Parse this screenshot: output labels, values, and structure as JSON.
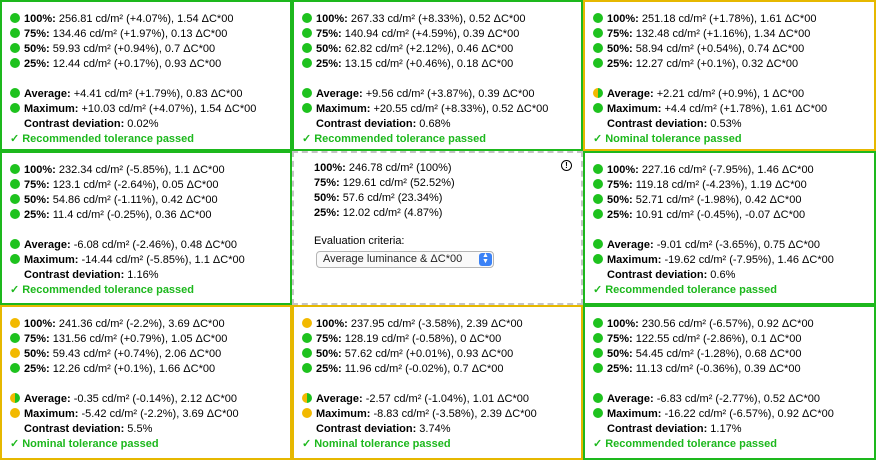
{
  "cells": [
    {
      "border": "green",
      "rows": [
        {
          "dot": "green",
          "label": "100%:",
          "text": " 256.81 cd/m² (+4.07%), 1.54 ΔC*00"
        },
        {
          "dot": "green",
          "label": "75%:",
          "text": " 134.46 cd/m² (+1.97%), 0.13 ΔC*00"
        },
        {
          "dot": "green",
          "label": "50%:",
          "text": " 59.93 cd/m² (+0.94%), 0.7 ΔC*00"
        },
        {
          "dot": "green",
          "label": "25%:",
          "text": " 12.44 cd/m² (+0.17%), 0.93 ΔC*00"
        }
      ],
      "average": {
        "dot": "green",
        "label": "Average:",
        "text": " +4.41 cd/m² (+1.79%), 0.83 ΔC*00"
      },
      "maximum": {
        "dot": "green",
        "label": "Maximum:",
        "text": " +10.03 cd/m² (+4.07%), 1.54 ΔC*00"
      },
      "contrast": {
        "label": "Contrast deviation:",
        "text": " 0.02%"
      },
      "status": "Recommended tolerance passed"
    },
    {
      "border": "green",
      "rows": [
        {
          "dot": "green",
          "label": "100%:",
          "text": " 267.33 cd/m² (+8.33%), 0.52 ΔC*00"
        },
        {
          "dot": "green",
          "label": "75%:",
          "text": " 140.94 cd/m² (+4.59%), 0.39 ΔC*00"
        },
        {
          "dot": "green",
          "label": "50%:",
          "text": " 62.82 cd/m² (+2.12%), 0.46 ΔC*00"
        },
        {
          "dot": "green",
          "label": "25%:",
          "text": " 13.15 cd/m² (+0.46%), 0.18 ΔC*00"
        }
      ],
      "average": {
        "dot": "green",
        "label": "Average:",
        "text": " +9.56 cd/m² (+3.87%), 0.39 ΔC*00"
      },
      "maximum": {
        "dot": "green",
        "label": "Maximum:",
        "text": " +20.55 cd/m² (+8.33%), 0.52 ΔC*00"
      },
      "contrast": {
        "label": "Contrast deviation:",
        "text": " 0.68%"
      },
      "status": "Recommended tolerance passed"
    },
    {
      "border": "yellow",
      "rows": [
        {
          "dot": "green",
          "label": "100%:",
          "text": " 251.18 cd/m² (+1.78%), 1.61 ΔC*00"
        },
        {
          "dot": "green",
          "label": "75%:",
          "text": " 132.48 cd/m² (+1.16%), 1.34 ΔC*00"
        },
        {
          "dot": "green",
          "label": "50%:",
          "text": " 58.94 cd/m² (+0.54%), 0.74 ΔC*00"
        },
        {
          "dot": "green",
          "label": "25%:",
          "text": " 12.27 cd/m² (+0.1%), 0.32 ΔC*00"
        }
      ],
      "average": {
        "dot": "half",
        "label": "Average:",
        "text": " +2.21 cd/m² (+0.9%), 1 ΔC*00"
      },
      "maximum": {
        "dot": "green",
        "label": "Maximum:",
        "text": " +4.4 cd/m² (+1.78%), 1.61 ΔC*00"
      },
      "contrast": {
        "label": "Contrast deviation:",
        "text": " 0.53%"
      },
      "status": "Nominal tolerance passed"
    },
    {
      "border": "green",
      "rows": [
        {
          "dot": "green",
          "label": "100%:",
          "text": " 232.34 cd/m² (-5.85%), 1.1 ΔC*00"
        },
        {
          "dot": "green",
          "label": "75%:",
          "text": " 123.1 cd/m² (-2.64%), 0.05 ΔC*00"
        },
        {
          "dot": "green",
          "label": "50%:",
          "text": " 54.86 cd/m² (-1.11%), 0.42 ΔC*00"
        },
        {
          "dot": "green",
          "label": "25%:",
          "text": " 11.4 cd/m² (-0.25%), 0.36 ΔC*00"
        }
      ],
      "average": {
        "dot": "green",
        "label": "Average:",
        "text": " -6.08 cd/m² (-2.46%), 0.48 ΔC*00"
      },
      "maximum": {
        "dot": "green",
        "label": "Maximum:",
        "text": " -14.44 cd/m² (-5.85%), 1.1 ΔC*00"
      },
      "contrast": {
        "label": "Contrast deviation:",
        "text": " 1.16%"
      },
      "status": "Recommended tolerance passed"
    },
    {
      "border": "center",
      "reference": [
        {
          "label": "100%:",
          "text": " 246.78 cd/m² (100%)"
        },
        {
          "label": "75%:",
          "text": " 129.61 cd/m² (52.52%)"
        },
        {
          "label": "50%:",
          "text": " 57.6 cd/m² (23.34%)"
        },
        {
          "label": "25%:",
          "text": " 12.02 cd/m² (4.87%)"
        }
      ],
      "criteria_label": "Evaluation criteria:",
      "criteria_value": "Average luminance & ΔC*00"
    },
    {
      "border": "green",
      "rows": [
        {
          "dot": "green",
          "label": "100%:",
          "text": " 227.16 cd/m² (-7.95%), 1.46 ΔC*00"
        },
        {
          "dot": "green",
          "label": "75%:",
          "text": " 119.18 cd/m² (-4.23%), 1.19 ΔC*00"
        },
        {
          "dot": "green",
          "label": "50%:",
          "text": " 52.71 cd/m² (-1.98%), 0.42 ΔC*00"
        },
        {
          "dot": "green",
          "label": "25%:",
          "text": " 10.91 cd/m² (-0.45%), -0.07 ΔC*00"
        }
      ],
      "average": {
        "dot": "green",
        "label": "Average:",
        "text": " -9.01 cd/m² (-3.65%), 0.75 ΔC*00"
      },
      "maximum": {
        "dot": "green",
        "label": "Maximum:",
        "text": " -19.62 cd/m² (-7.95%), 1.46 ΔC*00"
      },
      "contrast": {
        "label": "Contrast deviation:",
        "text": " 0.6%"
      },
      "status": "Recommended tolerance passed"
    },
    {
      "border": "yellow",
      "rows": [
        {
          "dot": "yellow",
          "label": "100%:",
          "text": " 241.36 cd/m² (-2.2%), 3.69 ΔC*00"
        },
        {
          "dot": "green",
          "label": "75%:",
          "text": " 131.56 cd/m² (+0.79%), 1.05 ΔC*00"
        },
        {
          "dot": "yellow",
          "label": "50%:",
          "text": " 59.43 cd/m² (+0.74%), 2.06 ΔC*00"
        },
        {
          "dot": "green",
          "label": "25%:",
          "text": " 12.26 cd/m² (+0.1%), 1.66 ΔC*00"
        }
      ],
      "average": {
        "dot": "half",
        "label": "Average:",
        "text": " -0.35 cd/m² (-0.14%), 2.12 ΔC*00"
      },
      "maximum": {
        "dot": "yellow",
        "label": "Maximum:",
        "text": " -5.42 cd/m² (-2.2%), 3.69 ΔC*00"
      },
      "contrast": {
        "label": "Contrast deviation:",
        "text": " 5.5%"
      },
      "status": "Nominal tolerance passed"
    },
    {
      "border": "yellow",
      "rows": [
        {
          "dot": "yellow",
          "label": "100%:",
          "text": " 237.95 cd/m² (-3.58%), 2.39 ΔC*00"
        },
        {
          "dot": "green",
          "label": "75%:",
          "text": " 128.19 cd/m² (-0.58%), 0 ΔC*00"
        },
        {
          "dot": "green",
          "label": "50%:",
          "text": " 57.62 cd/m² (+0.01%), 0.93 ΔC*00"
        },
        {
          "dot": "green",
          "label": "25%:",
          "text": " 11.96 cd/m² (-0.02%), 0.7 ΔC*00"
        }
      ],
      "average": {
        "dot": "half",
        "label": "Average:",
        "text": " -2.57 cd/m² (-1.04%), 1.01 ΔC*00"
      },
      "maximum": {
        "dot": "yellow",
        "label": "Maximum:",
        "text": " -8.83 cd/m² (-3.58%), 2.39 ΔC*00"
      },
      "contrast": {
        "label": "Contrast deviation:",
        "text": " 3.74%"
      },
      "status": "Nominal tolerance passed"
    },
    {
      "border": "green",
      "rows": [
        {
          "dot": "green",
          "label": "100%:",
          "text": " 230.56 cd/m² (-6.57%), 0.92 ΔC*00"
        },
        {
          "dot": "green",
          "label": "75%:",
          "text": " 122.55 cd/m² (-2.86%), 0.1 ΔC*00"
        },
        {
          "dot": "green",
          "label": "50%:",
          "text": " 54.45 cd/m² (-1.28%), 0.68 ΔC*00"
        },
        {
          "dot": "green",
          "label": "25%:",
          "text": " 11.13 cd/m² (-0.36%), 0.39 ΔC*00"
        }
      ],
      "average": {
        "dot": "green",
        "label": "Average:",
        "text": " -6.83 cd/m² (-2.77%), 0.52 ΔC*00"
      },
      "maximum": {
        "dot": "green",
        "label": "Maximum:",
        "text": " -16.22 cd/m² (-6.57%), 0.92 ΔC*00"
      },
      "contrast": {
        "label": "Contrast deviation:",
        "text": " 1.17%"
      },
      "status": "Recommended tolerance passed"
    }
  ]
}
